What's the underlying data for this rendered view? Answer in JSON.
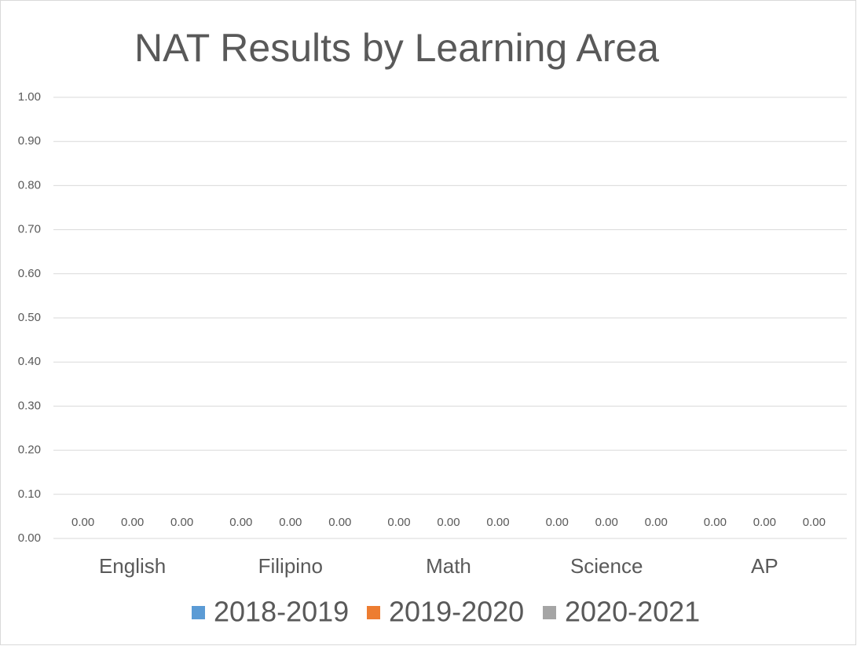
{
  "chart_data": {
    "type": "bar",
    "title": "NAT Results by Learning Area",
    "categories": [
      "English",
      "Filipino",
      "Math",
      "Science",
      "AP"
    ],
    "series": [
      {
        "name": "2018-2019",
        "color": "#5b9bd5",
        "values": [
          0,
          0,
          0,
          0,
          0
        ],
        "value_labels": [
          "0.00",
          "0.00",
          "0.00",
          "0.00",
          "0.00"
        ]
      },
      {
        "name": "2019-2020",
        "color": "#ed7d31",
        "values": [
          0,
          0,
          0,
          0,
          0
        ],
        "value_labels": [
          "0.00",
          "0.00",
          "0.00",
          "0.00",
          "0.00"
        ]
      },
      {
        "name": "2020-2021",
        "color": "#a5a5a5",
        "values": [
          0,
          0,
          0,
          0,
          0
        ],
        "value_labels": [
          "0.00",
          "0.00",
          "0.00",
          "0.00",
          "0.00"
        ]
      }
    ],
    "ylim": [
      0,
      1
    ],
    "yticks": [
      {
        "value": 0,
        "label": "0.00"
      },
      {
        "value": 0.1,
        "label": "0.10"
      },
      {
        "value": 0.2,
        "label": "0.20"
      },
      {
        "value": 0.3,
        "label": "0.30"
      },
      {
        "value": 0.4,
        "label": "0.40"
      },
      {
        "value": 0.5,
        "label": "0.50"
      },
      {
        "value": 0.6,
        "label": "0.60"
      },
      {
        "value": 0.7,
        "label": "0.70"
      },
      {
        "value": 0.8,
        "label": "0.80"
      },
      {
        "value": 0.9,
        "label": "0.90"
      },
      {
        "value": 1,
        "label": "1.00"
      }
    ],
    "grid": true,
    "legend": "bottom"
  }
}
